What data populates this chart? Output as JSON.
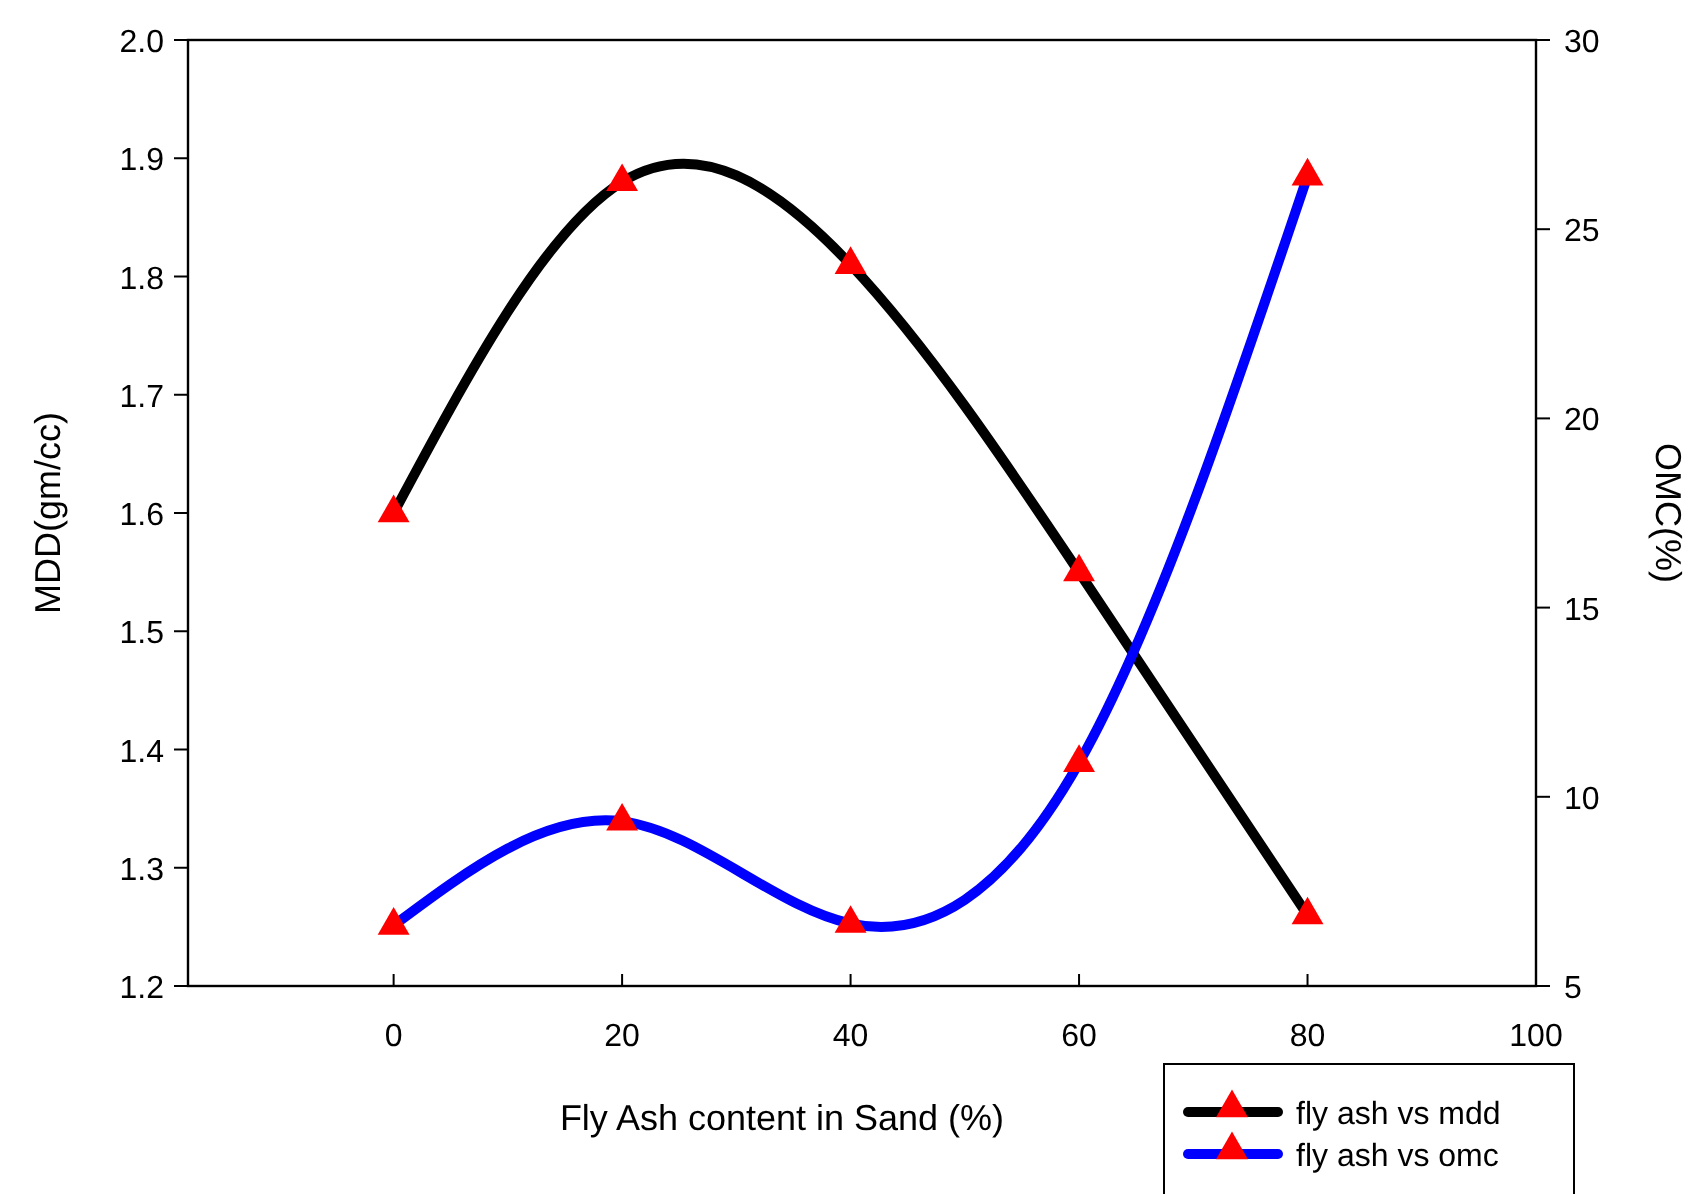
{
  "chart_data": {
    "type": "line",
    "xlabel": "Fly Ash content in Sand (%)",
    "ylabel": "MDD(gm/cc)",
    "y2label": "OMC(%)",
    "xlim": [
      -18,
      100
    ],
    "xticks": [
      0,
      20,
      40,
      60,
      80,
      100
    ],
    "ylim": [
      1.2,
      2.0
    ],
    "yticks": [
      {
        "value": 1.2,
        "label": "1.2"
      },
      {
        "value": 1.3,
        "label": "1.3"
      },
      {
        "value": 1.4,
        "label": "1.4"
      },
      {
        "value": 1.5,
        "label": "1.5"
      },
      {
        "value": 1.6,
        "label": "1.6"
      },
      {
        "value": 1.7,
        "label": "1.7"
      },
      {
        "value": 1.8,
        "label": "1.8"
      },
      {
        "value": 1.9,
        "label": "1.9"
      },
      {
        "value": 2.0,
        "label": "2.0"
      }
    ],
    "y2lim": [
      5,
      30
    ],
    "y2ticks": [
      5,
      10,
      15,
      20,
      25,
      30
    ],
    "x": [
      0,
      20,
      40,
      60,
      80
    ],
    "series": [
      {
        "name": "fly ash vs mdd",
        "color": "#000000",
        "values": [
          1.6,
          1.88,
          1.81,
          1.55,
          1.26
        ],
        "colors": [
          "#ff0000",
          "#ff0000",
          "#ff0000",
          "#ff0000",
          "#ff0000"
        ]
      },
      {
        "name": "fly ash vs omc",
        "color": "#0000ff",
        "axis": "y2",
        "values": [
          6.6,
          9.35,
          6.65,
          10.9,
          26.4
        ],
        "colors": [
          "#ff0000",
          "#ff0000",
          "#ff0000",
          "#ff0000",
          "#ff0000"
        ]
      }
    ],
    "marker": "triangle",
    "line_style": "solid",
    "grid": false,
    "legend": "bottom right"
  }
}
